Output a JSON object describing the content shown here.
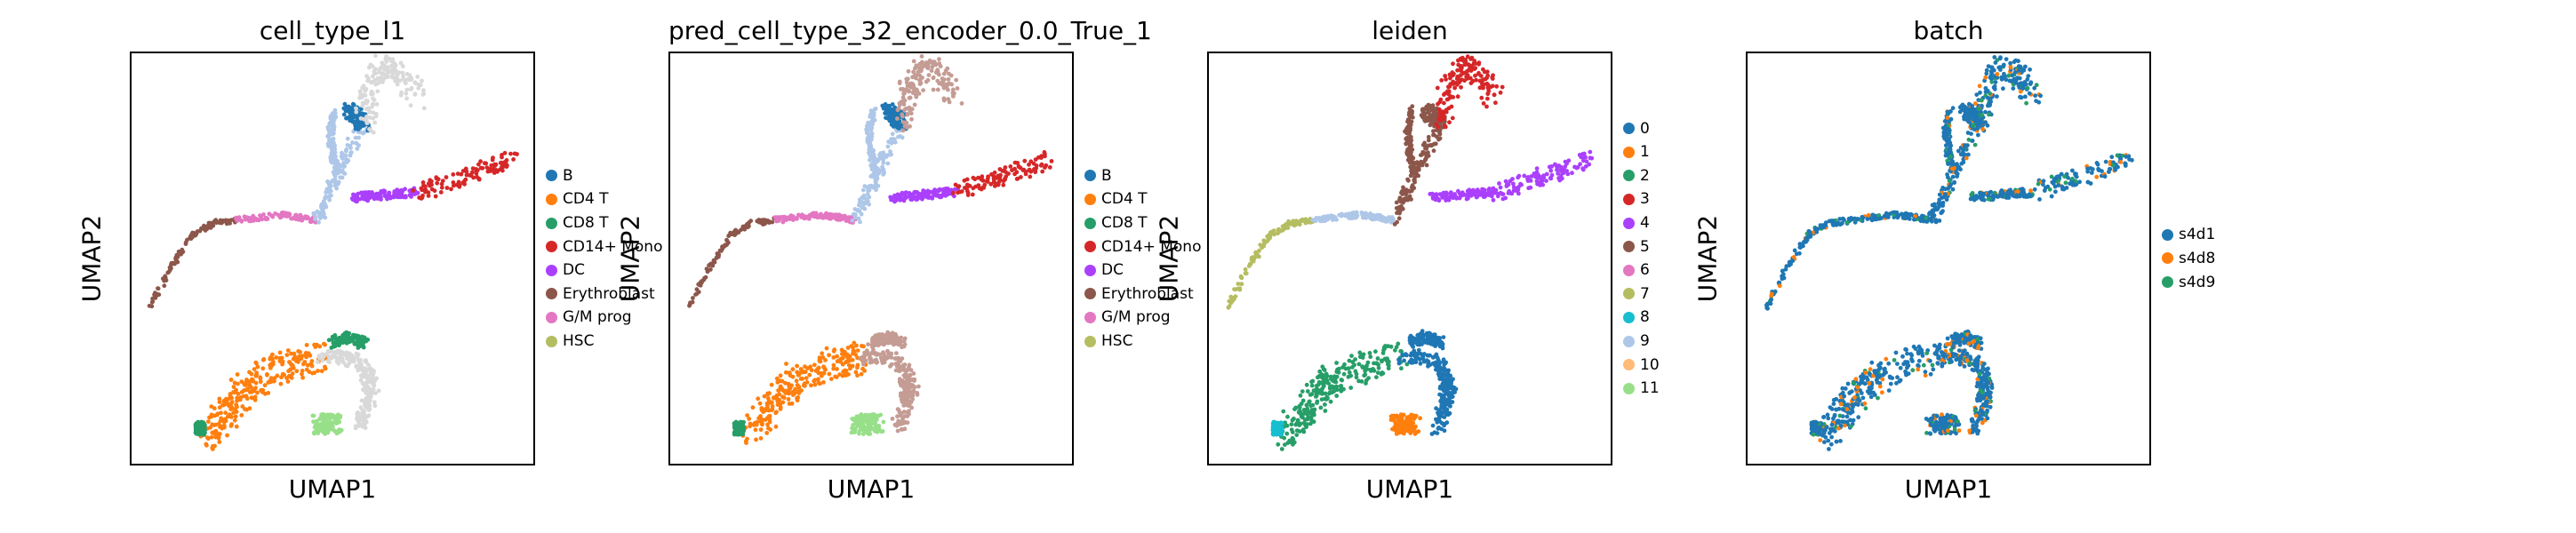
{
  "chart_data": [
    {
      "type": "scatter",
      "title": "cell_type_l1",
      "xlabel": "UMAP1",
      "ylabel": "UMAP2",
      "grid": false,
      "legend_placement": "right",
      "legend": [
        {
          "name": "B",
          "color": "#1f77b4"
        },
        {
          "name": "CD4 T",
          "color": "#ff7f0e"
        },
        {
          "name": "CD8 T",
          "color": "#279e68"
        },
        {
          "name": "CD14+ Mono",
          "color": "#d62728"
        },
        {
          "name": "DC",
          "color": "#aa40fc"
        },
        {
          "name": "Erythroblast",
          "color": "#8c564b"
        },
        {
          "name": "G/M prog",
          "color": "#e377c2"
        },
        {
          "name": "HSC",
          "color": "#b5bd61"
        }
      ]
    },
    {
      "type": "scatter",
      "title": "pred_cell_type_32_encoder_0.0_True_1",
      "xlabel": "UMAP1",
      "ylabel": "UMAP2",
      "grid": false,
      "legend_placement": "right",
      "legend": [
        {
          "name": "B",
          "color": "#1f77b4"
        },
        {
          "name": "CD4 T",
          "color": "#ff7f0e"
        },
        {
          "name": "CD8 T",
          "color": "#279e68"
        },
        {
          "name": "CD14+ Mono",
          "color": "#d62728"
        },
        {
          "name": "DC",
          "color": "#aa40fc"
        },
        {
          "name": "Erythroblast",
          "color": "#8c564b"
        },
        {
          "name": "G/M prog",
          "color": "#e377c2"
        },
        {
          "name": "HSC",
          "color": "#b5bd61"
        }
      ]
    },
    {
      "type": "scatter",
      "title": "leiden",
      "xlabel": "UMAP1",
      "ylabel": "UMAP2",
      "grid": false,
      "legend_placement": "right",
      "legend": [
        {
          "name": "0",
          "color": "#1f77b4"
        },
        {
          "name": "1",
          "color": "#ff7f0e"
        },
        {
          "name": "2",
          "color": "#279e68"
        },
        {
          "name": "3",
          "color": "#d62728"
        },
        {
          "name": "4",
          "color": "#aa40fc"
        },
        {
          "name": "5",
          "color": "#8c564b"
        },
        {
          "name": "6",
          "color": "#e377c2"
        },
        {
          "name": "7",
          "color": "#b5bd61"
        },
        {
          "name": "8",
          "color": "#17becf"
        },
        {
          "name": "9",
          "color": "#aec7e8"
        },
        {
          "name": "10",
          "color": "#ffbb78"
        },
        {
          "name": "11",
          "color": "#98df8a"
        }
      ]
    },
    {
      "type": "scatter",
      "title": "batch",
      "xlabel": "UMAP1",
      "ylabel": "UMAP2",
      "grid": false,
      "legend_placement": "right",
      "legend": [
        {
          "name": "s4d1",
          "color": "#1f77b4"
        },
        {
          "name": "s4d8",
          "color": "#ff7f0e"
        },
        {
          "name": "s4d9",
          "color": "#279e68"
        }
      ]
    }
  ]
}
